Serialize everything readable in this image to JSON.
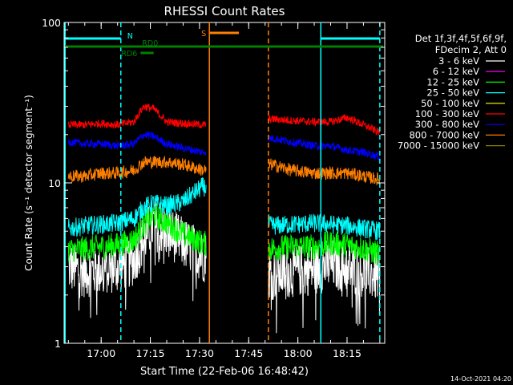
{
  "chart_data": {
    "type": "line",
    "title": "RHESSI Count Rates",
    "xlabel": "Start Time (22-Feb-06 16:48:42)",
    "ylabel": "Count Rate (s⁻¹ detector segment⁻¹)",
    "y_scale": "log",
    "ylim": [
      1,
      100
    ],
    "xlim": [
      "16:48:42",
      "18:26:30"
    ],
    "x_ticks": [
      "17:00",
      "17:15",
      "17:30",
      "17:45",
      "18:00",
      "18:15"
    ],
    "y_ticks": [
      "1",
      "10",
      "100"
    ],
    "legend_header": [
      "Det 1f,3f,4f,5f,6f,9f,",
      "FDecim 2, Att 0"
    ],
    "legend_position": "right",
    "data_gap": [
      "17:32",
      "17:51"
    ],
    "series": [
      {
        "name": "3 - 6 keV",
        "color": "#ffffff",
        "x": [
          "16:50",
          "16:55",
          "17:00",
          "17:05",
          "17:10",
          "17:13",
          "17:16",
          "17:20",
          "17:25",
          "17:31",
          "17:52",
          "17:58",
          "18:05",
          "18:10",
          "18:15",
          "18:20",
          "18:25"
        ],
        "y": [
          3.0,
          2.8,
          2.9,
          3.0,
          3.3,
          4.5,
          5.5,
          5.0,
          4.2,
          3.5,
          2.7,
          2.8,
          2.9,
          3.1,
          3.0,
          2.8,
          2.6
        ]
      },
      {
        "name": "6 - 12 keV",
        "color": "#ff00ff",
        "x": [],
        "y": []
      },
      {
        "name": "12 - 25 keV",
        "color": "#00ff00",
        "x": [
          "16:50",
          "16:55",
          "17:00",
          "17:05",
          "17:10",
          "17:13",
          "17:16",
          "17:20",
          "17:25",
          "17:31",
          "17:52",
          "17:58",
          "18:05",
          "18:10",
          "18:15",
          "18:20",
          "18:25"
        ],
        "y": [
          3.8,
          3.9,
          4.0,
          4.1,
          4.4,
          5.5,
          6.3,
          5.6,
          4.8,
          4.2,
          3.9,
          4.0,
          4.0,
          4.2,
          4.1,
          3.9,
          3.6
        ]
      },
      {
        "name": "25 - 50 keV",
        "color": "#00ffff",
        "x": [
          "16:50",
          "16:55",
          "17:00",
          "17:05",
          "17:10",
          "17:13",
          "17:16",
          "17:20",
          "17:25",
          "17:31",
          "17:52",
          "17:58",
          "18:05",
          "18:10",
          "18:15",
          "18:20",
          "18:25"
        ],
        "y": [
          5.2,
          5.4,
          5.5,
          5.6,
          6.0,
          7.0,
          7.5,
          7.2,
          7.6,
          9.5,
          5.4,
          5.5,
          5.6,
          5.5,
          5.4,
          5.2,
          5.0
        ]
      },
      {
        "name": "50 - 100 keV",
        "color": "#ffff00",
        "x": [],
        "y": []
      },
      {
        "name": "100 - 300 keV",
        "color": "#ff0000",
        "x": [
          "16:50",
          "16:55",
          "17:00",
          "17:05",
          "17:10",
          "17:13",
          "17:16",
          "17:20",
          "17:25",
          "17:31",
          "17:52",
          "17:58",
          "18:05",
          "18:10",
          "18:15",
          "18:20",
          "18:25"
        ],
        "y": [
          23.0,
          23.0,
          23.5,
          23.0,
          24.0,
          30.0,
          29.0,
          24.0,
          23.5,
          23.0,
          25.0,
          24.5,
          24.0,
          24.0,
          25.5,
          23.0,
          20.5
        ]
      },
      {
        "name": "300 - 800 keV",
        "color": "#0000ff",
        "x": [
          "16:50",
          "16:55",
          "17:00",
          "17:05",
          "17:10",
          "17:13",
          "17:16",
          "17:20",
          "17:25",
          "17:31",
          "17:52",
          "17:58",
          "18:05",
          "18:10",
          "18:15",
          "18:20",
          "18:25"
        ],
        "y": [
          18.0,
          17.5,
          17.5,
          17.0,
          17.5,
          20.0,
          19.5,
          17.5,
          16.5,
          15.5,
          19.0,
          18.0,
          17.0,
          17.0,
          16.0,
          15.5,
          14.5
        ]
      },
      {
        "name": "800 - 7000 keV",
        "color": "#ff8000",
        "x": [
          "16:50",
          "16:55",
          "17:00",
          "17:05",
          "17:10",
          "17:13",
          "17:16",
          "17:20",
          "17:25",
          "17:31",
          "17:52",
          "17:58",
          "18:05",
          "18:10",
          "18:15",
          "18:20",
          "18:25"
        ],
        "y": [
          11.0,
          11.0,
          11.5,
          11.5,
          12.0,
          13.5,
          13.5,
          13.5,
          13.0,
          12.0,
          13.0,
          12.0,
          11.5,
          11.5,
          11.5,
          11.0,
          10.5
        ]
      },
      {
        "name": "7000 - 15000 keV",
        "color": "#808000",
        "x": [],
        "y": []
      }
    ],
    "attenuator_bars": [
      {
        "label": "N",
        "color": "#00ffff",
        "segments": [
          [
            "16:49",
            "17:06"
          ],
          [
            "18:07",
            "18:25"
          ]
        ]
      },
      {
        "label": "S",
        "color": "#ff8000",
        "segments": [
          [
            "17:33",
            "17:42"
          ]
        ]
      },
      {
        "label": "RD0",
        "color": "#008000",
        "segments": [
          [
            "16:49",
            "18:26"
          ]
        ]
      },
      {
        "label": "RD6",
        "color": "#008000",
        "segments": [
          [
            "17:12",
            "17:16"
          ]
        ]
      }
    ],
    "vertical_markers": [
      {
        "x": "16:49",
        "color": "#00ffff",
        "style": "solid"
      },
      {
        "x": "17:06",
        "color": "#00ffff",
        "style": "dashed"
      },
      {
        "x": "17:33",
        "color": "#ff8000",
        "style": "solid"
      },
      {
        "x": "17:51",
        "color": "#ff8000",
        "style": "dashed"
      },
      {
        "x": "18:07",
        "color": "#00ffff",
        "style": "solid"
      },
      {
        "x": "18:25",
        "color": "#00ffff",
        "style": "dashed"
      }
    ],
    "grid": false
  },
  "footer_timestamp": "14-Oct-2021 04:20"
}
